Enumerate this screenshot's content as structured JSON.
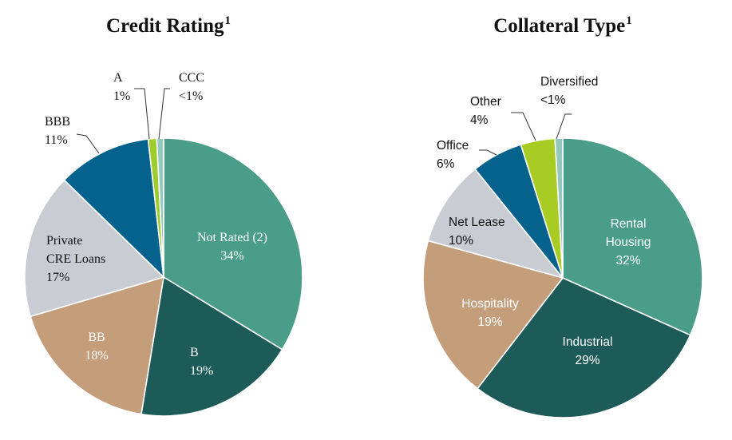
{
  "chart_data": [
    {
      "type": "pie",
      "title": "Credit Rating",
      "title_footnote": "1",
      "slices": [
        {
          "label": "Not Rated (2)",
          "value_label": "34%",
          "value": 34,
          "color": "#4a9e89",
          "text_color": "#ffffff"
        },
        {
          "label": "B",
          "value_label": "19%",
          "value": 19,
          "color": "#1d5b58",
          "text_color": "#ffffff"
        },
        {
          "label": "BB",
          "value_label": "18%",
          "value": 18,
          "color": "#c49d7a",
          "text_color": "#ffffff"
        },
        {
          "label": "Private\nCRE Loans",
          "value_label": "17%",
          "value": 17,
          "color": "#c9ccd3",
          "text_color": "#111111"
        },
        {
          "label": "BBB",
          "value_label": "11%",
          "value": 11,
          "color": "#04628c",
          "text_color": "#111111"
        },
        {
          "label": "A",
          "value_label": "1%",
          "value": 1,
          "color": "#9fcc2d",
          "text_color": "#111111"
        },
        {
          "label": "CCC",
          "value_label": "<1%",
          "value": 0.8,
          "color": "#93c8bc",
          "text_color": "#111111"
        }
      ]
    },
    {
      "type": "pie",
      "title": "Collateral Type",
      "title_footnote": "1",
      "slices": [
        {
          "label": "Rental\nHousing",
          "value_label": "32%",
          "value": 32,
          "color": "#4a9e89",
          "text_color": "#ffffff"
        },
        {
          "label": "Industrial",
          "value_label": "29%",
          "value": 29,
          "color": "#1d5b58",
          "text_color": "#ffffff"
        },
        {
          "label": "Hospitality",
          "value_label": "19%",
          "value": 19,
          "color": "#c49d7a",
          "text_color": "#ffffff"
        },
        {
          "label": "Net Lease",
          "value_label": "10%",
          "value": 10,
          "color": "#c9ccd3",
          "text_color": "#111111"
        },
        {
          "label": "Office",
          "value_label": "6%",
          "value": 6,
          "color": "#04628c",
          "text_color": "#111111"
        },
        {
          "label": "Other",
          "value_label": "4%",
          "value": 4,
          "color": "#a8cc24",
          "text_color": "#111111"
        },
        {
          "label": "Diversified",
          "value_label": "<1%",
          "value": 0.9,
          "color": "#93c8bc",
          "text_color": "#111111"
        }
      ]
    }
  ]
}
